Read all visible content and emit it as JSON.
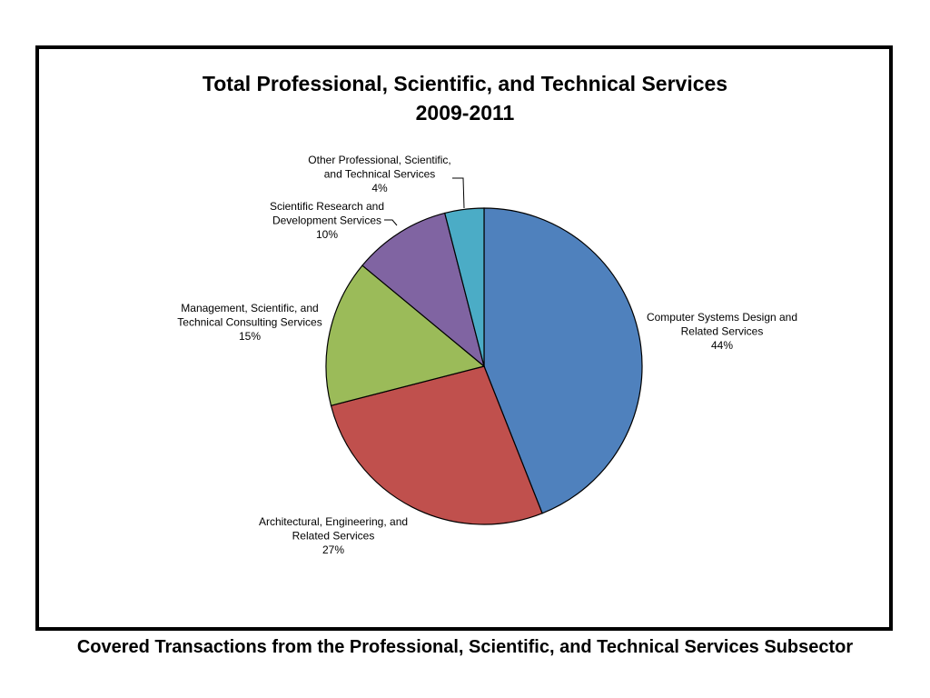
{
  "chart_data": {
    "type": "pie",
    "title": "Total Professional, Scientific, and Technical Services",
    "subtitle": "2009-2011",
    "slices": [
      {
        "label_lines": [
          "Computer Systems Design and",
          "Related Services"
        ],
        "percent_label": "44%",
        "value": 44,
        "color": "#4F81BD"
      },
      {
        "label_lines": [
          "Architectural, Engineering, and",
          "Related Services"
        ],
        "percent_label": "27%",
        "value": 27,
        "color": "#C0504D"
      },
      {
        "label_lines": [
          "Management, Scientific, and",
          "Technical Consulting Services"
        ],
        "percent_label": "15%",
        "value": 15,
        "color": "#9BBB59"
      },
      {
        "label_lines": [
          "Scientific Research and",
          "Development Services"
        ],
        "percent_label": "10%",
        "value": 10,
        "color": "#8064A2"
      },
      {
        "label_lines": [
          "Other Professional, Scientific,",
          "and Technical Services"
        ],
        "percent_label": "4%",
        "value": 4,
        "color": "#4BACC6"
      }
    ]
  },
  "caption": "Covered Transactions from the Professional, Scientific, and Technical Services Subsector"
}
